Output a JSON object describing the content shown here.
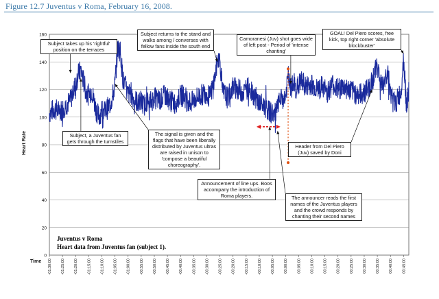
{
  "figure": {
    "title": "Figure 12.7 Juventus v Roma, February 16, 2008."
  },
  "chart_data": {
    "type": "line",
    "title": "",
    "subtitle_lines": [
      "Juventus v Roma",
      "Heart data from Juventus fan (subject 1)."
    ],
    "ylabel": "Heart Rate",
    "xlabel": "Time",
    "ylim": [
      0,
      160
    ],
    "yticks": [
      0,
      20,
      40,
      60,
      80,
      100,
      120,
      140,
      160
    ],
    "xticks": [
      "-01:30:00",
      "-01:25:00",
      "-01:20:00",
      "-01:15:00",
      "-01:10:00",
      "-01:05:00",
      "-01:00:00",
      "-00:55:00",
      "-00:50:00",
      "-00:45:00",
      "-00:40:00",
      "-00:35:00",
      "-00:30:00",
      "-00:25:00",
      "-00:20:00",
      "-00:15:00",
      "-00:10:00",
      "-00:05:00",
      "00:00:00",
      "00:05:00",
      "00:10:00",
      "00:15:00",
      "00:20:00",
      "00:25:00",
      "00:30:00",
      "00:35:00",
      "00:40:00",
      "00:45:00"
    ],
    "xrange_minutes": [
      -90,
      47
    ],
    "grid": true,
    "line_color": "#1a2a9c",
    "series": [
      {
        "name": "",
        "x": [
          -90,
          -88,
          -86,
          -84,
          -82,
          -81,
          -80,
          -79,
          -78,
          -77,
          -76,
          -75,
          -74,
          -73,
          -72,
          -71,
          -70,
          -69,
          -68,
          -67,
          -66,
          -65,
          -64,
          -63,
          -62,
          -61,
          -60,
          -59,
          -58,
          -57,
          -56,
          -55,
          -54,
          -53,
          -52,
          -50,
          -48,
          -46,
          -44,
          -42,
          -40,
          -38,
          -36,
          -34,
          -32,
          -30,
          -29,
          -28,
          -27,
          -26,
          -25,
          -24,
          -23,
          -22,
          -21,
          -20,
          -18,
          -16,
          -14,
          -12,
          -10,
          -8,
          -6,
          -4,
          -2,
          0,
          1,
          2,
          3,
          4,
          6,
          8,
          10,
          12,
          14,
          16,
          18,
          20,
          22,
          24,
          26,
          28,
          30,
          32,
          33,
          34,
          35,
          36,
          37,
          38,
          39,
          40,
          41,
          42,
          43,
          44,
          45,
          46,
          47
        ],
        "values": [
          103,
          106,
          104,
          108,
          112,
          118,
          124,
          131,
          134,
          126,
          118,
          116,
          120,
          112,
          104,
          100,
          106,
          104,
          106,
          109,
          114,
          124,
          150,
          148,
          128,
          122,
          116,
          118,
          114,
          112,
          110,
          112,
          108,
          112,
          110,
          114,
          112,
          116,
          112,
          110,
          116,
          114,
          110,
          114,
          116,
          118,
          114,
          120,
          128,
          140,
          142,
          118,
          116,
          114,
          118,
          122,
          120,
          118,
          122,
          116,
          110,
          108,
          104,
          102,
          112,
          114,
          130,
          120,
          124,
          120,
          126,
          122,
          124,
          120,
          122,
          118,
          124,
          120,
          122,
          120,
          118,
          116,
          118,
          122,
          126,
          132,
          138,
          128,
          122,
          126,
          134,
          118,
          112,
          110,
          114,
          118,
          144,
          110,
          116
        ]
      }
    ],
    "highlights": {
      "range_start_minutes": -10,
      "range_end_minutes": -3,
      "range_level": 93,
      "marker_minutes": 1,
      "marker_top": 135,
      "marker_bottom": 67
    },
    "annotations": [
      {
        "id": "terraces",
        "text": "Subject takes up his 'rightful' position on the terraces",
        "target_minutes": -82,
        "target_value": 132
      },
      {
        "id": "stand",
        "text": "Subject returns to the stand and walks among / converses with fellow fans inside the south end",
        "target_minutes": -26,
        "target_value": 140
      },
      {
        "id": "camoranesi",
        "text": "Camoranesi (Juv) shot goes wide of left post - Period of 'intense chanting'",
        "target_minutes": 2,
        "target_value": 124
      },
      {
        "id": "goal",
        "text": "GOAL! Del Piero scores, free kick, top right corner 'absolute blockbuster'",
        "target_minutes": 45,
        "target_value": 146
      },
      {
        "id": "turnstiles",
        "text": "Subject, a Juventus fan gets through the turnstiles",
        "target_minutes": -78,
        "target_value": 128
      },
      {
        "id": "signal",
        "text": "The signal is given and the flags that have been liberally distributed by Juventus ultras are raised in unison to 'compose a beautiful choreography'.",
        "target_minutes": -65,
        "target_value": 124
      },
      {
        "id": "header",
        "text": "Header from Del Piero (Juv) saved by Doni",
        "target_minutes": 33,
        "target_value": 120
      },
      {
        "id": "lineup",
        "text": "Announcement of line ups. Boos accompany the introduction of Roma players.",
        "target_minutes": -6,
        "target_value": 93
      },
      {
        "id": "announcer",
        "text": "The announcer reads the first names of the Juventus players and the crowd responds by chanting their second names",
        "target_minutes": -3,
        "target_value": 90
      }
    ]
  }
}
